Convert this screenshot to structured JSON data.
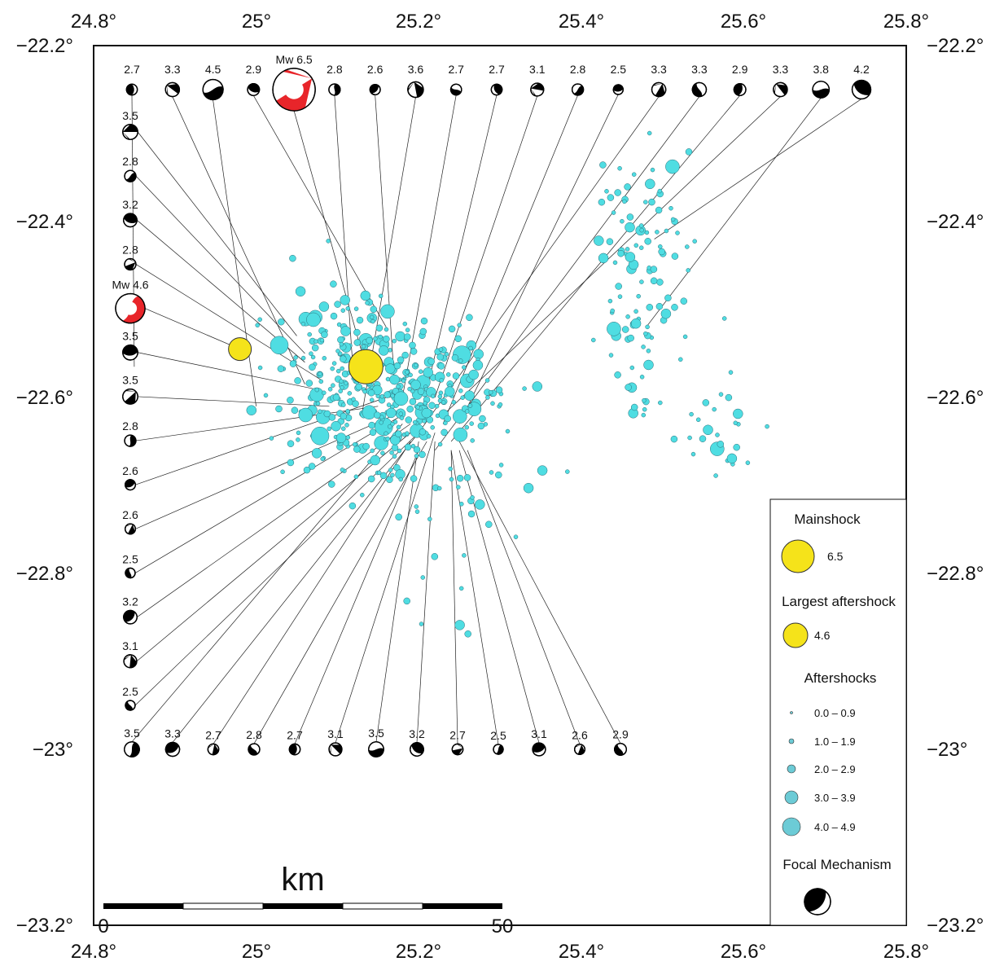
{
  "map": {
    "lon_ticks": [
      "24.8°",
      "25°",
      "25.2°",
      "25.4°",
      "25.6°",
      "25.8°"
    ],
    "lat_ticks": [
      "−22.2°",
      "−22.4°",
      "−22.6°",
      "−22.8°",
      "−23°",
      "−23.2°"
    ],
    "lon_range": [
      24.8,
      25.8
    ],
    "lat_range": [
      -23.2,
      -22.2
    ]
  },
  "scale_bar": {
    "unit": "km",
    "start": "0",
    "end": "50"
  },
  "legend": {
    "mainshock_title": "Mainshock",
    "mainshock_mag": "6.5",
    "largest_aftershock_title": "Largest aftershock",
    "largest_aftershock_mag": "4.6",
    "aftershocks_title": "Aftershocks",
    "aftershock_bins": [
      "0.0 – 0.9",
      "1.0 – 1.9",
      "2.0 – 2.9",
      "3.0 – 3.9",
      "4.0 – 4.9"
    ],
    "focal_title": "Focal Mechanism"
  },
  "colors": {
    "mainshock": "#f5e31a",
    "aftershock": "#4fdde2",
    "highlight_beachball": "#e8252a"
  },
  "events": {
    "mainshock": {
      "lon": 25.135,
      "lat": -22.565,
      "mag": 6.5,
      "label": "Mw 6.5"
    },
    "largest_aftershock": {
      "lon": 24.98,
      "lat": -22.545,
      "mag": 4.6,
      "label": "Mw 4.6"
    }
  },
  "focal_top": [
    {
      "label": "2.7",
      "lon": 24.85,
      "lat": -22.565
    },
    {
      "label": "3.3",
      "lon": 25.06,
      "lat": -22.585
    },
    {
      "label": "4.5",
      "lon": 25.0,
      "lat": -22.61
    },
    {
      "label": "2.9",
      "lon": 25.16,
      "lat": -22.52
    },
    {
      "label": "Mw 6.5",
      "lon": 25.135,
      "lat": -22.565
    },
    {
      "label": "2.8",
      "lon": 25.12,
      "lat": -22.58
    },
    {
      "label": "2.6",
      "lon": 25.17,
      "lat": -22.58
    },
    {
      "label": "3.6",
      "lon": 25.13,
      "lat": -22.62
    },
    {
      "label": "2.7",
      "lon": 25.18,
      "lat": -22.6
    },
    {
      "label": "2.7",
      "lon": 25.2,
      "lat": -22.63
    },
    {
      "label": "3.1",
      "lon": 25.22,
      "lat": -22.6
    },
    {
      "label": "2.8",
      "lon": 25.23,
      "lat": -22.63
    },
    {
      "label": "2.5",
      "lon": 25.25,
      "lat": -22.63
    },
    {
      "label": "3.3",
      "lon": 25.2,
      "lat": -22.64
    },
    {
      "label": "3.3",
      "lon": 25.22,
      "lat": -22.66
    },
    {
      "label": "2.9",
      "lon": 25.24,
      "lat": -22.65
    },
    {
      "label": "3.3",
      "lon": 25.23,
      "lat": -22.62
    },
    {
      "label": "3.8",
      "lon": 25.48,
      "lat": -22.52
    },
    {
      "label": "4.2",
      "lon": 25.49,
      "lat": -22.42
    }
  ],
  "focal_left": [
    {
      "label": "3.5",
      "lon": 25.05,
      "lat": -22.53
    },
    {
      "label": "2.8",
      "lon": 25.06,
      "lat": -22.55
    },
    {
      "label": "3.2",
      "lon": 25.06,
      "lat": -22.56
    },
    {
      "label": "2.8",
      "lon": 25.08,
      "lat": -22.58
    },
    {
      "label": "Mw 4.6",
      "lon": 24.98,
      "lat": -22.545
    },
    {
      "label": "3.5",
      "lon": 25.07,
      "lat": -22.59
    },
    {
      "label": "3.5",
      "lon": 25.09,
      "lat": -22.61
    },
    {
      "label": "2.8",
      "lon": 25.15,
      "lat": -22.61
    },
    {
      "label": "2.6",
      "lon": 25.16,
      "lat": -22.6
    },
    {
      "label": "2.6",
      "lon": 25.17,
      "lat": -22.62
    },
    {
      "label": "2.5",
      "lon": 25.18,
      "lat": -22.62
    },
    {
      "label": "3.2",
      "lon": 25.19,
      "lat": -22.63
    },
    {
      "label": "3.1",
      "lon": 25.19,
      "lat": -22.64
    },
    {
      "label": "2.5",
      "lon": 25.2,
      "lat": -22.64
    }
  ],
  "focal_bottom": [
    {
      "label": "3.5",
      "lon": 25.18,
      "lat": -22.63
    },
    {
      "label": "3.3",
      "lon": 25.2,
      "lat": -22.64
    },
    {
      "label": "2.7",
      "lon": 25.19,
      "lat": -22.65
    },
    {
      "label": "2.8",
      "lon": 25.21,
      "lat": -22.65
    },
    {
      "label": "2.7",
      "lon": 25.2,
      "lat": -22.66
    },
    {
      "label": "3.1",
      "lon": 25.22,
      "lat": -22.64
    },
    {
      "label": "3.5",
      "lon": 25.2,
      "lat": -22.65
    },
    {
      "label": "3.2",
      "lon": 25.22,
      "lat": -22.65
    },
    {
      "label": "2.7",
      "lon": 25.24,
      "lat": -22.66
    },
    {
      "label": "2.5",
      "lon": 25.24,
      "lat": -22.66
    },
    {
      "label": "3.1",
      "lon": 25.25,
      "lat": -22.66
    },
    {
      "label": "2.6",
      "lon": 25.26,
      "lat": -22.66
    },
    {
      "label": "2.9",
      "lon": 25.25,
      "lat": -22.65
    }
  ]
}
